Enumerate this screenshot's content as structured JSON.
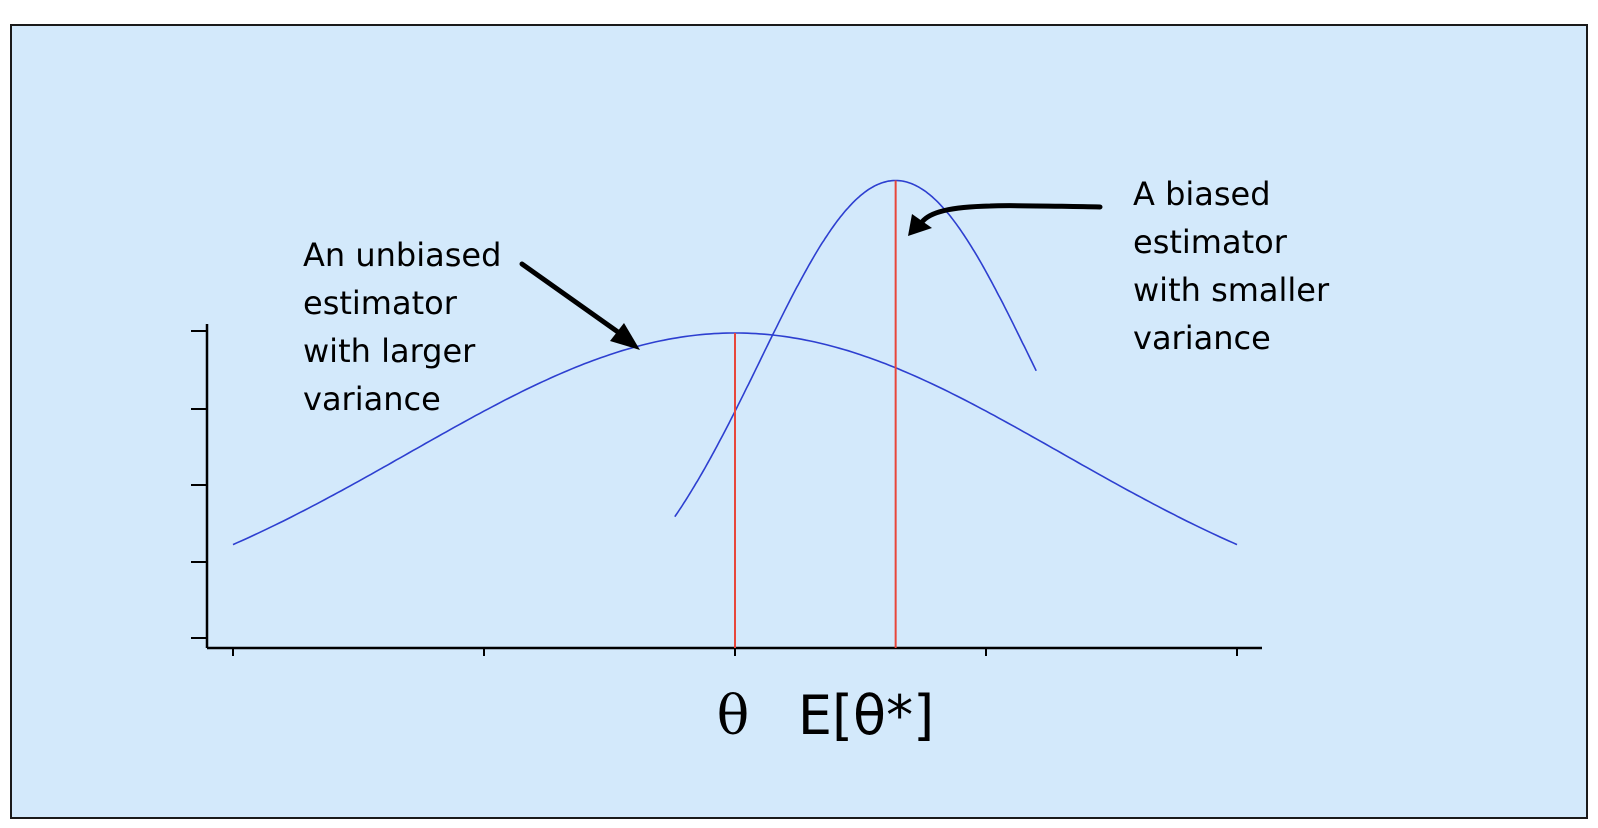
{
  "annotations": {
    "unbiased": {
      "lines": [
        "An unbiased",
        "estimator",
        "with larger",
        "variance"
      ]
    },
    "biased": {
      "lines": [
        "A biased",
        "estimator",
        "with smaller",
        "variance"
      ]
    }
  },
  "axis_labels": {
    "theta": "θ",
    "expected_theta_star": "E[θ*]"
  },
  "colors": {
    "background": "#d3e9fb",
    "curve": "#2d3fd0",
    "marker": "#e8463a",
    "axis": "#000000"
  },
  "distributions": {
    "wide": {
      "mean": 0,
      "sd": 1.3,
      "peak": 1.0
    },
    "narrow": {
      "mean": 0.64,
      "sd": 0.54,
      "peak": 1.5
    }
  }
}
